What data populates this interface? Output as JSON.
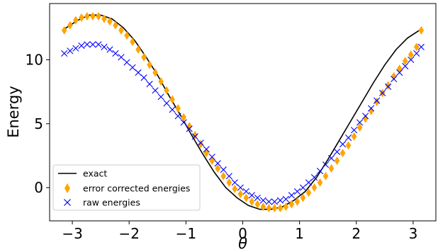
{
  "chart_data": {
    "type": "scatter",
    "xlabel": "θ",
    "ylabel": "Energy",
    "xlim": [
      -3.4,
      3.4
    ],
    "ylim": [
      -2.6,
      14.4
    ],
    "x_ticks": [
      -3,
      -2,
      -1,
      0,
      1,
      2,
      3
    ],
    "x_tick_labels": [
      "−3",
      "−2",
      "−1",
      "0",
      "1",
      "2",
      "3"
    ],
    "y_ticks": [
      0,
      5,
      10
    ],
    "y_tick_labels": [
      "0",
      "5",
      "10"
    ],
    "grid": false,
    "legend_position": "lower-left",
    "series": [
      {
        "name": "exact",
        "marker": "line",
        "color": "#000000",
        "x": [
          -3.142,
          -2.9,
          -2.7,
          -2.5,
          -2.3,
          -2.1,
          -1.9,
          -1.7,
          -1.5,
          -1.3,
          -1.1,
          -0.9,
          -0.7,
          -0.5,
          -0.3,
          -0.1,
          0.1,
          0.3,
          0.5,
          0.7,
          0.9,
          1.1,
          1.3,
          1.5,
          1.7,
          1.9,
          2.1,
          2.3,
          2.5,
          2.7,
          2.9,
          3.142
        ],
        "y": [
          12.4,
          13.1,
          13.5,
          13.5,
          13.2,
          12.5,
          11.5,
          10.2,
          8.8,
          7.2,
          5.7,
          4.1,
          2.6,
          1.2,
          0.0,
          -0.8,
          -1.4,
          -1.7,
          -1.7,
          -1.5,
          -1.0,
          -0.3,
          0.8,
          2.2,
          3.7,
          5.2,
          6.7,
          8.2,
          9.6,
          10.8,
          11.7,
          12.4
        ]
      },
      {
        "name": "error corrected energies",
        "marker": "diamond",
        "color": "#ffa500",
        "x": [
          -3.142,
          -3.04,
          -2.94,
          -2.84,
          -2.74,
          -2.64,
          -2.54,
          -2.44,
          -2.34,
          -2.24,
          -2.14,
          -2.04,
          -1.94,
          -1.84,
          -1.74,
          -1.64,
          -1.54,
          -1.44,
          -1.34,
          -1.24,
          -1.14,
          -1.04,
          -0.94,
          -0.84,
          -0.74,
          -0.64,
          -0.54,
          -0.44,
          -0.34,
          -0.24,
          -0.14,
          -0.04,
          0.06,
          0.16,
          0.26,
          0.36,
          0.46,
          0.56,
          0.66,
          0.76,
          0.86,
          0.96,
          1.06,
          1.16,
          1.26,
          1.36,
          1.46,
          1.56,
          1.66,
          1.76,
          1.86,
          1.96,
          2.06,
          2.16,
          2.26,
          2.36,
          2.46,
          2.56,
          2.66,
          2.76,
          2.86,
          2.96,
          3.06,
          3.142
        ],
        "y": [
          12.3,
          12.7,
          13.1,
          13.3,
          13.4,
          13.4,
          13.4,
          13.2,
          13.0,
          12.7,
          12.3,
          11.9,
          11.4,
          10.8,
          10.2,
          9.6,
          9.0,
          8.3,
          7.6,
          6.9,
          6.2,
          5.5,
          4.8,
          4.1,
          3.4,
          2.7,
          2.1,
          1.5,
          0.9,
          0.4,
          -0.1,
          -0.5,
          -0.8,
          -1.1,
          -1.3,
          -1.5,
          -1.6,
          -1.6,
          -1.6,
          -1.5,
          -1.3,
          -1.1,
          -0.8,
          -0.4,
          0.0,
          0.4,
          0.9,
          1.5,
          2.1,
          2.7,
          3.3,
          4.0,
          4.7,
          5.4,
          6.0,
          6.7,
          7.4,
          8.0,
          8.7,
          9.3,
          9.9,
          10.4,
          11.0,
          12.3
        ]
      },
      {
        "name": "raw energies",
        "marker": "x",
        "color": "#0000ff",
        "x": [
          -3.142,
          -3.04,
          -2.94,
          -2.84,
          -2.74,
          -2.64,
          -2.54,
          -2.44,
          -2.34,
          -2.24,
          -2.14,
          -2.04,
          -1.94,
          -1.84,
          -1.74,
          -1.64,
          -1.54,
          -1.44,
          -1.34,
          -1.24,
          -1.14,
          -1.04,
          -0.94,
          -0.84,
          -0.74,
          -0.64,
          -0.54,
          -0.44,
          -0.34,
          -0.24,
          -0.14,
          -0.04,
          0.06,
          0.16,
          0.26,
          0.36,
          0.46,
          0.56,
          0.66,
          0.76,
          0.86,
          0.96,
          1.06,
          1.16,
          1.26,
          1.36,
          1.46,
          1.56,
          1.66,
          1.76,
          1.86,
          1.96,
          2.06,
          2.16,
          2.26,
          2.36,
          2.46,
          2.56,
          2.66,
          2.76,
          2.86,
          2.96,
          3.06,
          3.142
        ],
        "y": [
          10.5,
          10.7,
          10.9,
          11.1,
          11.2,
          11.2,
          11.2,
          11.0,
          10.8,
          10.5,
          10.2,
          9.8,
          9.4,
          9.0,
          8.6,
          8.1,
          7.6,
          7.1,
          6.6,
          6.1,
          5.6,
          5.1,
          4.6,
          4.0,
          3.5,
          3.0,
          2.4,
          1.9,
          1.4,
          0.9,
          0.4,
          0.0,
          -0.3,
          -0.6,
          -0.8,
          -1.0,
          -1.1,
          -1.1,
          -1.0,
          -0.9,
          -0.6,
          -0.3,
          0.0,
          0.4,
          0.8,
          1.3,
          1.8,
          2.3,
          2.8,
          3.4,
          3.9,
          4.5,
          5.1,
          5.6,
          6.2,
          6.8,
          7.4,
          7.9,
          8.5,
          9.0,
          9.5,
          10.0,
          10.5,
          11.0
        ]
      }
    ],
    "legend": [
      "exact",
      "error corrected energies",
      "raw energies"
    ]
  }
}
